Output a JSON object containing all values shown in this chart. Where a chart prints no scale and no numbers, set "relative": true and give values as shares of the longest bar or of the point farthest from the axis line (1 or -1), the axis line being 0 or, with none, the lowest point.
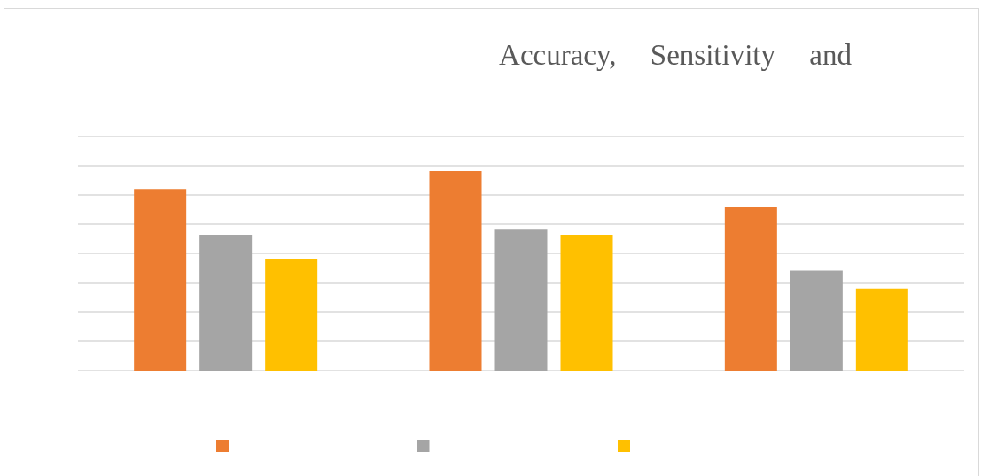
{
  "chart_data": {
    "type": "bar",
    "title": "Accuracy, Sensitivity and",
    "relative": true,
    "categories": [
      null,
      null,
      null
    ],
    "series": [
      {
        "color": "#ed7d31",
        "values": [
          0.91,
          1,
          0.82
        ]
      },
      {
        "color": "#a5a5a5",
        "values": [
          0.68,
          0.71,
          0.5
        ]
      },
      {
        "color": "#ffc000",
        "values": [
          0.56,
          0.68,
          0.41
        ]
      }
    ],
    "grid": true
  }
}
